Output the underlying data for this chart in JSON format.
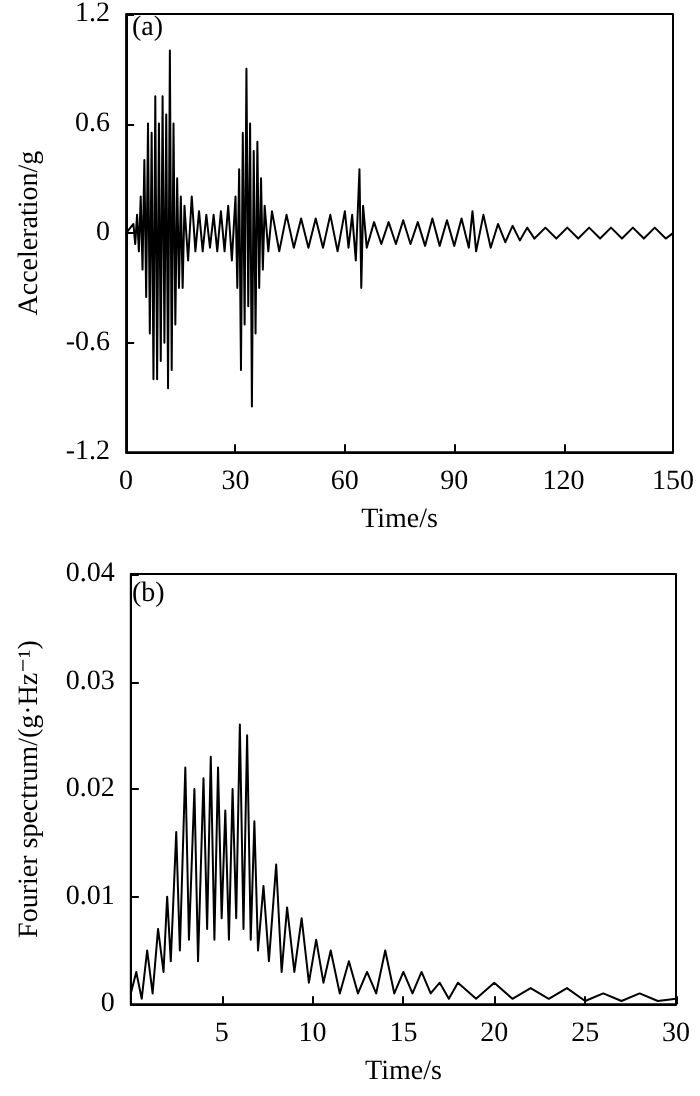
{
  "chart_data": [
    {
      "type": "line",
      "annotations": [
        "(a)"
      ],
      "xlabel": "Time/s",
      "ylabel": "Acceleration/g",
      "xlim": [
        0,
        150
      ],
      "xticks": [
        0,
        30,
        60,
        90,
        120,
        150
      ],
      "ylim": [
        -1.2,
        1.2
      ],
      "yticks": [
        -1.2,
        -0.6,
        0,
        0.6,
        1.2
      ],
      "grid": false,
      "marker": "none",
      "line_style": "solid",
      "series": [
        {
          "color": "#000000",
          "x": [
            0,
            2,
            2.5,
            3,
            3.5,
            4,
            4.5,
            5,
            5.5,
            6,
            6.5,
            7,
            7.5,
            8,
            8.5,
            9,
            9.5,
            10,
            10.5,
            11,
            11.5,
            12,
            12.5,
            13,
            13.5,
            14,
            14.5,
            15,
            15.5,
            16,
            17,
            18,
            19,
            20,
            21,
            22,
            23,
            24,
            25,
            26,
            27,
            28,
            29,
            30,
            30.5,
            31,
            31.5,
            32,
            32.5,
            33,
            33.5,
            34,
            34.5,
            35,
            35.5,
            36,
            36.5,
            37,
            37.5,
            38,
            39,
            40,
            42,
            44,
            46,
            48,
            50,
            52,
            54,
            56,
            58,
            60,
            61,
            62,
            63,
            64,
            64.5,
            65,
            66,
            68,
            70,
            72,
            74,
            76,
            78,
            80,
            82,
            84,
            86,
            88,
            90,
            92,
            94,
            95,
            96,
            98,
            100,
            102,
            104,
            106,
            108,
            110,
            112,
            115,
            118,
            121,
            124,
            127,
            130,
            133,
            136,
            139,
            142,
            145,
            148,
            150
          ],
          "values": [
            0,
            0.05,
            -0.06,
            0.1,
            -0.1,
            0.2,
            -0.2,
            0.4,
            -0.35,
            0.6,
            -0.55,
            0.55,
            -0.8,
            0.75,
            -0.8,
            0.6,
            -0.7,
            0.75,
            -0.6,
            0.65,
            -0.85,
            1.0,
            -0.75,
            0.6,
            -0.5,
            0.3,
            -0.3,
            0.2,
            -0.3,
            0.15,
            -0.15,
            0.2,
            -0.1,
            0.12,
            -0.1,
            0.1,
            -0.08,
            0.1,
            -0.1,
            0.12,
            -0.1,
            0.15,
            -0.15,
            0.2,
            -0.3,
            0.35,
            -0.75,
            0.55,
            -0.5,
            0.9,
            -0.4,
            0.6,
            -0.95,
            0.45,
            -0.55,
            0.5,
            -0.3,
            0.3,
            -0.2,
            0.15,
            -0.1,
            0.12,
            -0.1,
            0.1,
            -0.08,
            0.08,
            -0.08,
            0.08,
            -0.08,
            0.1,
            -0.1,
            0.12,
            -0.08,
            0.1,
            -0.15,
            0.35,
            -0.3,
            0.15,
            -0.08,
            0.06,
            -0.06,
            0.06,
            -0.06,
            0.07,
            -0.06,
            0.06,
            -0.07,
            0.08,
            -0.07,
            0.07,
            -0.07,
            0.08,
            -0.08,
            0.12,
            -0.1,
            0.1,
            -0.08,
            0.05,
            -0.05,
            0.04,
            -0.04,
            0.03,
            -0.03,
            0.03,
            -0.03,
            0.03,
            -0.03,
            0.03,
            -0.03,
            0.03,
            -0.03,
            0.03,
            -0.03,
            0.03,
            -0.03,
            0
          ]
        }
      ]
    },
    {
      "type": "line",
      "annotations": [
        "(b)"
      ],
      "xlabel": "Time/s",
      "ylabel": "Fourier spectrum/(g·Hz⁻¹)",
      "xlim": [
        0,
        30
      ],
      "xticks": [
        5,
        10,
        15,
        20,
        25,
        30
      ],
      "ylim": [
        0,
        0.04
      ],
      "yticks": [
        0,
        0.01,
        0.02,
        0.03,
        0.04
      ],
      "grid": false,
      "marker": "none",
      "line_style": "solid",
      "series": [
        {
          "color": "#000000",
          "x": [
            0,
            0.3,
            0.6,
            0.9,
            1.2,
            1.5,
            1.8,
            2,
            2.2,
            2.5,
            2.7,
            3,
            3.2,
            3.5,
            3.7,
            4,
            4.2,
            4.4,
            4.6,
            4.8,
            5,
            5.2,
            5.4,
            5.6,
            5.8,
            6,
            6.2,
            6.4,
            6.6,
            6.8,
            7,
            7.3,
            7.6,
            8,
            8.3,
            8.6,
            9,
            9.4,
            9.8,
            10.2,
            10.6,
            11,
            11.5,
            12,
            12.5,
            13,
            13.5,
            14,
            14.5,
            15,
            15.5,
            16,
            16.5,
            17,
            17.5,
            18,
            19,
            20,
            21,
            22,
            23,
            24,
            25,
            26,
            27,
            28,
            29,
            30
          ],
          "values": [
            0.001,
            0.003,
            0.0005,
            0.005,
            0.001,
            0.007,
            0.003,
            0.01,
            0.004,
            0.016,
            0.005,
            0.022,
            0.006,
            0.02,
            0.004,
            0.021,
            0.007,
            0.023,
            0.006,
            0.022,
            0.008,
            0.018,
            0.006,
            0.02,
            0.008,
            0.026,
            0.007,
            0.025,
            0.006,
            0.017,
            0.005,
            0.011,
            0.004,
            0.013,
            0.003,
            0.009,
            0.003,
            0.008,
            0.002,
            0.006,
            0.002,
            0.005,
            0.001,
            0.004,
            0.001,
            0.003,
            0.001,
            0.005,
            0.001,
            0.003,
            0.001,
            0.003,
            0.001,
            0.002,
            0.0005,
            0.002,
            0.0005,
            0.002,
            0.0005,
            0.0015,
            0.0005,
            0.0015,
            0.0003,
            0.001,
            0.0003,
            0.001,
            0.0003,
            0.0005
          ]
        }
      ]
    }
  ]
}
